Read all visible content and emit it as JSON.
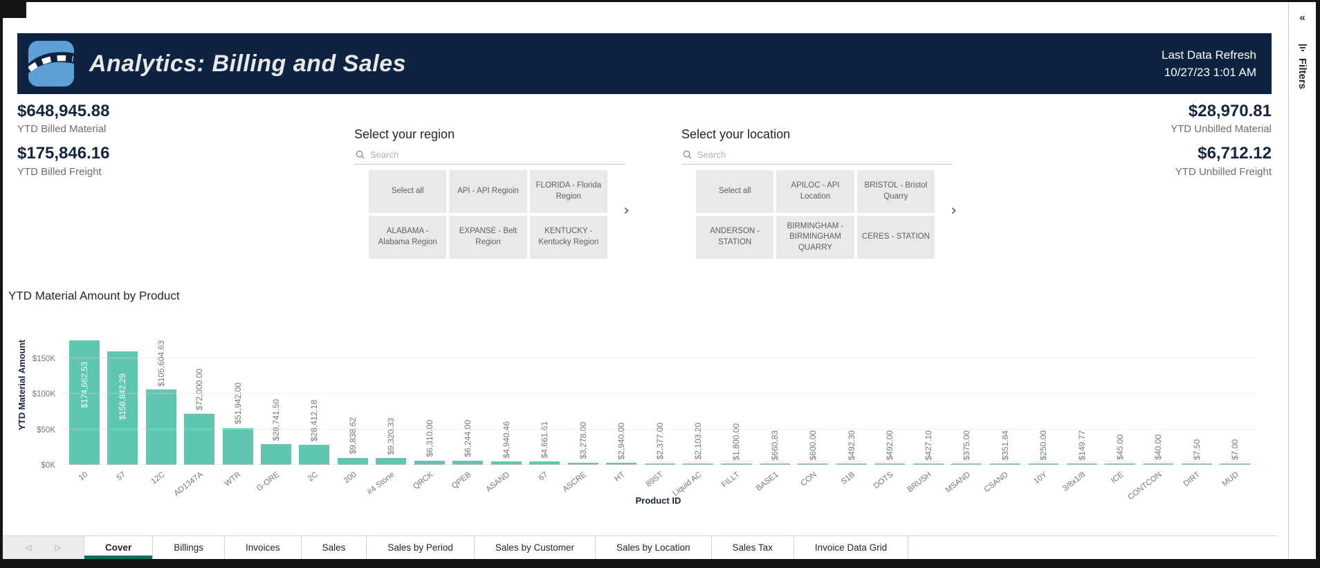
{
  "header": {
    "title": "Analytics: Billing and Sales",
    "refresh_label": "Last Data Refresh",
    "refresh_value": "10/27/23 1:01 AM"
  },
  "kpis": {
    "left": [
      {
        "value": "$648,945.88",
        "label": "YTD Billed Material"
      },
      {
        "value": "$175,846.16",
        "label": "YTD Billed Freight"
      }
    ],
    "right": [
      {
        "value": "$28,970.81",
        "label": "YTD Unbilled Material"
      },
      {
        "value": "$6,712.12",
        "label": "YTD Unbilled Freight"
      }
    ]
  },
  "slicers": {
    "region": {
      "title": "Select your region",
      "search_placeholder": "Search",
      "tiles": [
        "Select all",
        "API - API Regioin",
        "FLORIDA - Florida Region",
        "ALABAMA - Alabama Region",
        "EXPANSE - Belt Region",
        "KENTUCKY - Kentucky Region"
      ],
      "chevron": "›"
    },
    "location": {
      "title": "Select your location",
      "search_placeholder": "Search",
      "tiles": [
        "Select all",
        "APILOC - API Location",
        "BRISTOL - Bristol Quarry",
        "ANDERSON - STATION",
        "BIRMINGHAM - BIRMINGHAM QUARRY",
        "CERES - STATION"
      ],
      "chevron": "›"
    }
  },
  "chart_data": {
    "type": "bar",
    "title": "YTD Material Amount by Product",
    "xlabel": "Product ID",
    "ylabel": "YTD Material Amount",
    "bar_color": "#5ec6b1",
    "grid": true,
    "legend": false,
    "ylim": [
      0,
      175000
    ],
    "yticks": [
      {
        "label": "$0K",
        "value": 0
      },
      {
        "label": "$50K",
        "value": 50000
      },
      {
        "label": "$100K",
        "value": 100000
      },
      {
        "label": "$150K",
        "value": 150000
      }
    ],
    "categories": [
      "10",
      "57",
      "12C",
      "AD1347A",
      "WTR",
      "G-ORE",
      "2C",
      "200",
      "#4 Stone",
      "QRCK",
      "QPEB",
      "ASAND",
      "67",
      "ASCRE",
      "HT",
      "89ST",
      "Liquid AC",
      "FILLT",
      "BASE1",
      "CON",
      "S1B",
      "DOTS",
      "BRUSH",
      "MSAND",
      "CSAND",
      "10Y",
      "3/8x1/8",
      "ICE",
      "CONTCON",
      "DIRT",
      "MUD"
    ],
    "values": [
      174662.53,
      158842.29,
      105604.63,
      72000.0,
      51942.0,
      28741.5,
      28412.18,
      9838.62,
      9320.33,
      6310.0,
      6244.0,
      4940.46,
      4661.61,
      3278.0,
      2940.0,
      2377.0,
      2103.2,
      1800.0,
      660.83,
      600.0,
      492.3,
      492.0,
      427.1,
      375.0,
      351.84,
      250.0,
      149.77,
      45.0,
      40.0,
      7.5,
      7.0
    ],
    "data_labels": [
      "$174,662.53",
      "$158,842.29",
      "$105,604.63",
      "$72,000.00",
      "$51,942.00",
      "$28,741.50",
      "$28,412.18",
      "$9,838.62",
      "$9,320.33",
      "$6,310.00",
      "$6,244.00",
      "$4,940.46",
      "$4,661.61",
      "$3,278.00",
      "$2,940.00",
      "$2,377.00",
      "$2,103.20",
      "$1,800.00",
      "$660.83",
      "$600.00",
      "$492.30",
      "$492.00",
      "$427.10",
      "$375.00",
      "$351.84",
      "$250.00",
      "$149.77",
      "$45.00",
      "$40.00",
      "$7.50",
      "$7.00"
    ]
  },
  "tabs": {
    "items": [
      "Cover",
      "Billings",
      "Invoices",
      "Sales",
      "Sales by Period",
      "Sales by Customer",
      "Sales by Location",
      "Sales Tax",
      "Invoice Data Grid"
    ],
    "active": "Cover",
    "prev_icon": "◁",
    "next_icon": "▷"
  },
  "filters_panel": {
    "label": "Filters",
    "collapse_icon": "«"
  }
}
